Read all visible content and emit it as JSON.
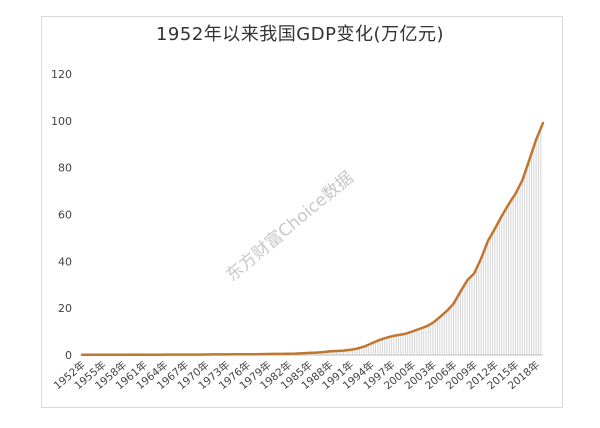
{
  "chart_data": {
    "type": "area",
    "title": "1952年以来我国GDP变化(万亿元)",
    "watermark": "东方财富Choice数据",
    "ylim": [
      0,
      120
    ],
    "yticks": [
      0,
      20,
      40,
      60,
      80,
      100,
      120
    ],
    "xtick_labels": [
      "1952年",
      "1955年",
      "1958年",
      "1961年",
      "1964年",
      "1967年",
      "1970年",
      "1973年",
      "1976年",
      "1979年",
      "1982年",
      "1985年",
      "1988年",
      "1991年",
      "1994年",
      "1997年",
      "2000年",
      "2003年",
      "2006年",
      "2009年",
      "2012年",
      "2015年",
      "2018年"
    ],
    "grid": false,
    "line_color": "#c0762e",
    "fill_color": "#d4d4d4",
    "series": [
      {
        "x": [
          1952,
          1953,
          1954,
          1955,
          1956,
          1957,
          1958,
          1959,
          1960,
          1961,
          1962,
          1963,
          1964,
          1965,
          1966,
          1967,
          1968,
          1969,
          1970,
          1971,
          1972,
          1973,
          1974,
          1975,
          1976,
          1977,
          1978,
          1979,
          1980,
          1981,
          1982,
          1983,
          1984,
          1985,
          1986,
          1987,
          1988,
          1989,
          1990,
          1991,
          1992,
          1993,
          1994,
          1995,
          1996,
          1997,
          1998,
          1999,
          2000,
          2001,
          2002,
          2003,
          2004,
          2005,
          2006,
          2007,
          2008,
          2009,
          2010,
          2011,
          2012,
          2013,
          2014,
          2015,
          2016,
          2017,
          2018,
          2019
        ],
        "values": [
          0.07,
          0.08,
          0.09,
          0.09,
          0.1,
          0.11,
          0.13,
          0.14,
          0.15,
          0.12,
          0.12,
          0.12,
          0.15,
          0.17,
          0.19,
          0.18,
          0.17,
          0.19,
          0.23,
          0.24,
          0.25,
          0.27,
          0.28,
          0.3,
          0.29,
          0.32,
          0.37,
          0.41,
          0.46,
          0.49,
          0.54,
          0.6,
          0.73,
          0.91,
          1.04,
          1.22,
          1.52,
          1.72,
          1.89,
          2.22,
          2.72,
          3.57,
          4.86,
          6.13,
          7.18,
          7.97,
          8.52,
          9.06,
          10.03,
          11.09,
          12.17,
          13.74,
          16.18,
          18.73,
          21.94,
          27.02,
          31.92,
          34.85,
          41.21,
          48.79,
          53.86,
          59.3,
          64.36,
          68.89,
          74.64,
          83.2,
          91.93,
          99.09
        ]
      }
    ]
  }
}
